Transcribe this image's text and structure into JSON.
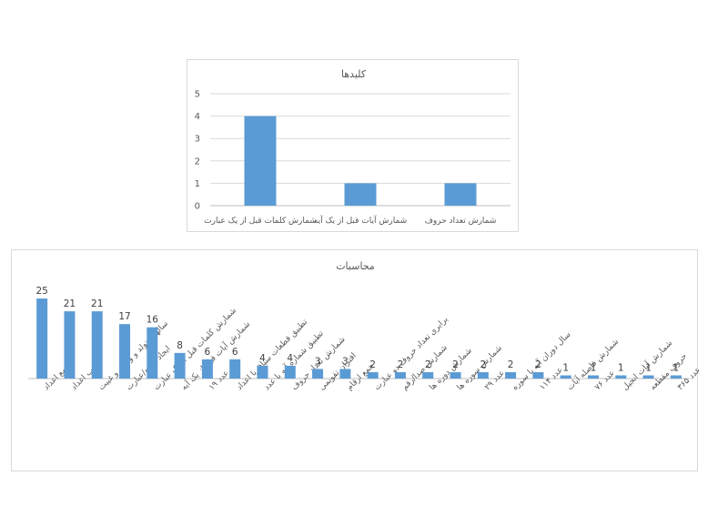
{
  "colors": {
    "bar": "#5b9bd5",
    "grid": "#d9d9d9",
    "text": "#595959"
  },
  "chart_data": [
    {
      "type": "bar",
      "title": "کلیدها",
      "categories": [
        "شمارش کلمات قبل از یک عبارت",
        "شمارش آیات قبل از یک آیه",
        "شمارش تعداد حروف"
      ],
      "values": [
        4,
        1,
        1
      ],
      "ylim": [
        0,
        5
      ],
      "yticks": [
        0,
        1,
        2,
        3,
        4,
        5
      ],
      "grid": true,
      "legend": "none"
    },
    {
      "type": "bar",
      "title": "محاسبات",
      "categories": [
        "جمع اعداد",
        "ضرب اعداد",
        "سالهای تولد و وفات و غیبت",
        "ایجاد کلمه/عبارت",
        "شمارش کلمات قبل از یک عبارت",
        "شمارش آیات قبل از یک آیه",
        "عدد ۱۹",
        "تطبیق قطعات سیاق با اعداد",
        "تطبیق شماره آیه با عدد",
        "شمارش تعداد حروف",
        "اقتران تقویمی",
        "جمع ارقام",
        "برابری تعداد حروف دو عبارت",
        "شمارش صدا/رقم",
        "شمارش دوره ها",
        "شمارش سوره ها",
        "عدد ۲۹",
        "سال دوران آیه با سوره",
        "عدد ۱۱۴",
        "شمارش فاصله آیات",
        "عدد ۷۶",
        "شمارش آیات انجیل",
        "حروف مقطعه",
        "عدد ۳۶۵"
      ],
      "values": [
        25,
        21,
        21,
        17,
        16,
        8,
        6,
        6,
        4,
        4,
        3,
        3,
        2,
        2,
        2,
        2,
        2,
        2,
        2,
        1,
        1,
        1,
        1,
        1
      ],
      "ylim": [
        0,
        25
      ],
      "grid": false,
      "legend": "none",
      "data_labels": true
    }
  ]
}
